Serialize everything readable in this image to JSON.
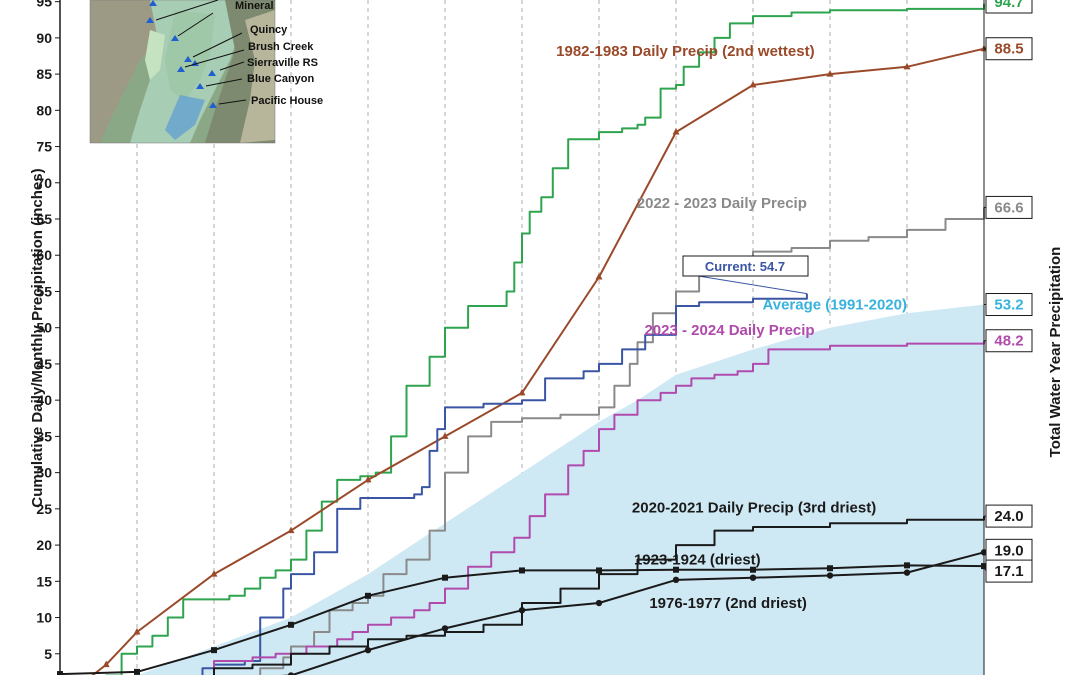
{
  "chart_data": {
    "type": "line",
    "ylabel": "Cumulative Daily/Monthly Precipitation (inches)",
    "y2label": "Total Water Year Precipitation",
    "ylim": [
      0,
      95
    ],
    "yticks": [
      5,
      10,
      15,
      20,
      25,
      30,
      35,
      40,
      45,
      50,
      55,
      60,
      65,
      70,
      75,
      80,
      85,
      90,
      95
    ],
    "x_range_months": [
      0,
      12
    ],
    "grid": "vertical-dashed",
    "colors": {
      "wettest": "#2ea44f",
      "second_wettest": "#9a4a2a",
      "y2022": "#8a8a8a",
      "current": "#3a55a4",
      "average_fill": "#cfe9f4",
      "average_label": "#37b3de",
      "y2023": "#b04aad",
      "dry": "#1a1a1a"
    },
    "series": [
      {
        "key": "wettest",
        "marker": "none",
        "end_value": "94.7",
        "points": [
          [
            0.1,
            0.3
          ],
          [
            0.4,
            1.5
          ],
          [
            0.6,
            2
          ],
          [
            0.8,
            5
          ],
          [
            1.0,
            6
          ],
          [
            1.2,
            7.5
          ],
          [
            1.4,
            10
          ],
          [
            1.6,
            12.5
          ],
          [
            2.0,
            12.5
          ],
          [
            2.2,
            13
          ],
          [
            2.4,
            14
          ],
          [
            2.6,
            15.5
          ],
          [
            2.8,
            16.5
          ],
          [
            3.0,
            18
          ],
          [
            3.2,
            22
          ],
          [
            3.4,
            26
          ],
          [
            3.6,
            29
          ],
          [
            3.9,
            29.5
          ],
          [
            4.1,
            30
          ],
          [
            4.3,
            35
          ],
          [
            4.5,
            42
          ],
          [
            4.8,
            46
          ],
          [
            5.0,
            50
          ],
          [
            5.3,
            53
          ],
          [
            5.8,
            55
          ],
          [
            5.9,
            59
          ],
          [
            6.0,
            63
          ],
          [
            6.1,
            66
          ],
          [
            6.25,
            68
          ],
          [
            6.4,
            72
          ],
          [
            6.6,
            76
          ],
          [
            7.0,
            77
          ],
          [
            7.3,
            77.5
          ],
          [
            7.5,
            78
          ],
          [
            7.6,
            79
          ],
          [
            7.8,
            83
          ],
          [
            8.0,
            83.5
          ],
          [
            8.1,
            86
          ],
          [
            8.3,
            88
          ],
          [
            8.5,
            90
          ],
          [
            8.7,
            92
          ],
          [
            9.0,
            93
          ],
          [
            9.5,
            93.5
          ],
          [
            10.0,
            93.8
          ],
          [
            11.0,
            94
          ],
          [
            12.0,
            94.7
          ]
        ]
      },
      {
        "key": "second_wettest",
        "name": "1982-1983 Daily Precip (2nd wettest)",
        "marker": "triangle",
        "end_value": "88.5",
        "points": [
          [
            0,
            0
          ],
          [
            0.1,
            0
          ],
          [
            0.3,
            1
          ],
          [
            0.6,
            3.5
          ],
          [
            1.0,
            8
          ],
          [
            2.0,
            16
          ],
          [
            3.0,
            22
          ],
          [
            4.0,
            29
          ],
          [
            5.0,
            35
          ],
          [
            6.0,
            41
          ],
          [
            7.0,
            57
          ],
          [
            8.0,
            77
          ],
          [
            9.0,
            83.5
          ],
          [
            10.0,
            85
          ],
          [
            11.0,
            86
          ],
          [
            12.0,
            88.5
          ]
        ]
      },
      {
        "key": "y2022",
        "name": "2022 - 2023 Daily Precip",
        "marker": "none",
        "end_value": "66.6",
        "points": [
          [
            0,
            0
          ],
          [
            1.3,
            0.3
          ],
          [
            1.8,
            0.5
          ],
          [
            2.0,
            1
          ],
          [
            2.4,
            1.5
          ],
          [
            2.6,
            3
          ],
          [
            2.9,
            4.5
          ],
          [
            3.0,
            6
          ],
          [
            3.3,
            8
          ],
          [
            3.5,
            11
          ],
          [
            3.8,
            12
          ],
          [
            4.0,
            13
          ],
          [
            4.2,
            16
          ],
          [
            4.5,
            18
          ],
          [
            4.8,
            22
          ],
          [
            5.0,
            30
          ],
          [
            5.3,
            35
          ],
          [
            5.6,
            37
          ],
          [
            6.0,
            37.5
          ],
          [
            6.5,
            38
          ],
          [
            7.0,
            39
          ],
          [
            7.2,
            42
          ],
          [
            7.4,
            45
          ],
          [
            7.5,
            48
          ],
          [
            7.7,
            52
          ],
          [
            8.0,
            55
          ],
          [
            8.3,
            58
          ],
          [
            8.6,
            59.5
          ],
          [
            9.0,
            60.5
          ],
          [
            9.5,
            61
          ],
          [
            10.0,
            62
          ],
          [
            10.5,
            62.5
          ],
          [
            11.0,
            63.5
          ],
          [
            11.5,
            65
          ],
          [
            12.0,
            66.6
          ]
        ]
      },
      {
        "key": "current",
        "name": "Current: 54.7",
        "marker": "none",
        "points": [
          [
            0,
            0
          ],
          [
            1.4,
            0.2
          ],
          [
            1.6,
            0.5
          ],
          [
            1.8,
            1
          ],
          [
            1.85,
            3
          ],
          [
            2.0,
            3.5
          ],
          [
            2.4,
            4
          ],
          [
            2.6,
            10
          ],
          [
            2.9,
            14
          ],
          [
            3.0,
            16
          ],
          [
            3.3,
            19
          ],
          [
            3.6,
            25
          ],
          [
            3.9,
            26.5
          ],
          [
            4.3,
            26.5
          ],
          [
            4.6,
            27
          ],
          [
            4.7,
            28
          ],
          [
            4.8,
            33
          ],
          [
            4.9,
            36
          ],
          [
            5.0,
            39
          ],
          [
            5.5,
            39.5
          ],
          [
            6.0,
            40
          ],
          [
            6.3,
            43
          ],
          [
            6.8,
            44
          ],
          [
            7.0,
            45
          ],
          [
            7.3,
            47
          ],
          [
            7.6,
            49
          ],
          [
            8.0,
            53
          ],
          [
            8.3,
            53.5
          ],
          [
            9.0,
            54
          ],
          [
            9.7,
            54.7
          ]
        ]
      },
      {
        "key": "average",
        "name": "Average (1991-2020)",
        "marker": "none",
        "end_value": "53.2",
        "points": [
          [
            0,
            0
          ],
          [
            0.5,
            0.5
          ],
          [
            1.0,
            2
          ],
          [
            1.5,
            4
          ],
          [
            2.0,
            6
          ],
          [
            3.0,
            10
          ],
          [
            4.0,
            16
          ],
          [
            5.0,
            23
          ],
          [
            6.0,
            30
          ],
          [
            7.0,
            37
          ],
          [
            7.5,
            40
          ],
          [
            8.0,
            43.5
          ],
          [
            9.0,
            47
          ],
          [
            10.0,
            50
          ],
          [
            11.0,
            52
          ],
          [
            12.0,
            53.2
          ]
        ]
      },
      {
        "key": "y2023",
        "name": "2023 - 2024 Daily Precip",
        "marker": "none",
        "end_value": "48.2",
        "points": [
          [
            0,
            0
          ],
          [
            1.0,
            0.2
          ],
          [
            1.8,
            0.5
          ],
          [
            2.0,
            4
          ],
          [
            2.5,
            4.5
          ],
          [
            2.8,
            5
          ],
          [
            3.2,
            6
          ],
          [
            3.6,
            7
          ],
          [
            3.8,
            8
          ],
          [
            4.0,
            9
          ],
          [
            4.3,
            10
          ],
          [
            4.6,
            11
          ],
          [
            4.8,
            12
          ],
          [
            5.0,
            14
          ],
          [
            5.3,
            17
          ],
          [
            5.6,
            19
          ],
          [
            5.9,
            21
          ],
          [
            6.1,
            24
          ],
          [
            6.3,
            27
          ],
          [
            6.6,
            31
          ],
          [
            6.8,
            33
          ],
          [
            7.0,
            36
          ],
          [
            7.2,
            38
          ],
          [
            7.5,
            40
          ],
          [
            7.8,
            41
          ],
          [
            8.0,
            42
          ],
          [
            8.2,
            43
          ],
          [
            8.5,
            43.5
          ],
          [
            8.8,
            44
          ],
          [
            9.0,
            45
          ],
          [
            9.2,
            47
          ],
          [
            10.0,
            47.5
          ],
          [
            11.0,
            47.8
          ],
          [
            12.0,
            48.2
          ]
        ]
      },
      {
        "key": "d2020",
        "name": "2020-2021 Daily Precip (3rd driest)",
        "marker": "none",
        "end_value": "24.0",
        "points": [
          [
            0,
            0
          ],
          [
            1.5,
            1
          ],
          [
            2.0,
            3
          ],
          [
            2.5,
            3.5
          ],
          [
            3.0,
            5
          ],
          [
            3.5,
            6
          ],
          [
            4.0,
            7
          ],
          [
            4.5,
            7.5
          ],
          [
            5.0,
            8
          ],
          [
            5.5,
            9
          ],
          [
            6.0,
            12
          ],
          [
            6.5,
            14
          ],
          [
            7.0,
            16
          ],
          [
            7.5,
            18
          ],
          [
            8.0,
            20
          ],
          [
            8.5,
            22
          ],
          [
            9.0,
            22.5
          ],
          [
            10.0,
            23
          ],
          [
            11.0,
            23.5
          ],
          [
            12.0,
            24.0
          ]
        ]
      },
      {
        "key": "driest",
        "name": "1923-1924 (driest)",
        "marker": "square",
        "end_value": "17.1",
        "points": [
          [
            0,
            2.2
          ],
          [
            1.0,
            2.5
          ],
          [
            2.0,
            5.5
          ],
          [
            3.0,
            9
          ],
          [
            4.0,
            13
          ],
          [
            5.0,
            15.5
          ],
          [
            6.0,
            16.5
          ],
          [
            7.0,
            16.5
          ],
          [
            8.0,
            16.6
          ],
          [
            9.0,
            16.6
          ],
          [
            10.0,
            16.8
          ],
          [
            11.0,
            17.2
          ],
          [
            12.0,
            17.1
          ]
        ]
      },
      {
        "key": "second_driest",
        "name": "1976-1977 (2nd driest)",
        "marker": "circle",
        "end_value": "19.0",
        "points": [
          [
            0,
            0
          ],
          [
            1.0,
            0.5
          ],
          [
            2.0,
            1.5
          ],
          [
            3.0,
            2
          ],
          [
            4.0,
            5.5
          ],
          [
            5.0,
            8.5
          ],
          [
            6.0,
            11
          ],
          [
            7.0,
            12
          ],
          [
            8.0,
            15.2
          ],
          [
            9.0,
            15.5
          ],
          [
            10.0,
            15.8
          ],
          [
            11.0,
            16.2
          ],
          [
            12.0,
            19.0
          ]
        ]
      }
    ],
    "labels": [
      {
        "key": "l_2nd_wettest",
        "text": "1982-1983 Daily Precip (2nd wettest)",
        "color_key": "second_wettest",
        "at": [
          9.8,
          87.5
        ]
      },
      {
        "key": "l_2022",
        "text": "2022 - 2023 Daily Precip",
        "color_key": "y2022",
        "at": [
          9.7,
          66.5
        ]
      },
      {
        "key": "l_avg",
        "text": "Average (1991-2020)",
        "color_key": "average_label",
        "at": [
          11.0,
          52.5
        ]
      },
      {
        "key": "l_2023",
        "text": "2023 - 2024 Daily Precip",
        "color_key": "y2023",
        "at": [
          9.8,
          49
        ]
      },
      {
        "key": "l_2020",
        "text": "2020-2021 Daily Precip (3rd driest)",
        "color_key": "dry",
        "at": [
          10.6,
          24.5
        ]
      },
      {
        "key": "l_driest",
        "text": "1923-1924 (driest)",
        "color_key": "dry",
        "at": [
          9.1,
          17.3
        ]
      },
      {
        "key": "l_2nd_driest",
        "text": "1976-1977 (2nd driest)",
        "color_key": "dry",
        "at": [
          9.7,
          11.3
        ]
      }
    ],
    "current_label": "Current: 54.7",
    "end_boxes": [
      "94.7",
      "88.5",
      "66.6",
      "53.2",
      "48.2",
      "24.0",
      "19.0",
      "17.1"
    ]
  },
  "map_inset": {
    "stations": [
      "Mineral",
      "Quincy",
      "Brush Creek",
      "Sierraville RS",
      "Blue Canyon",
      "Pacific House"
    ]
  }
}
